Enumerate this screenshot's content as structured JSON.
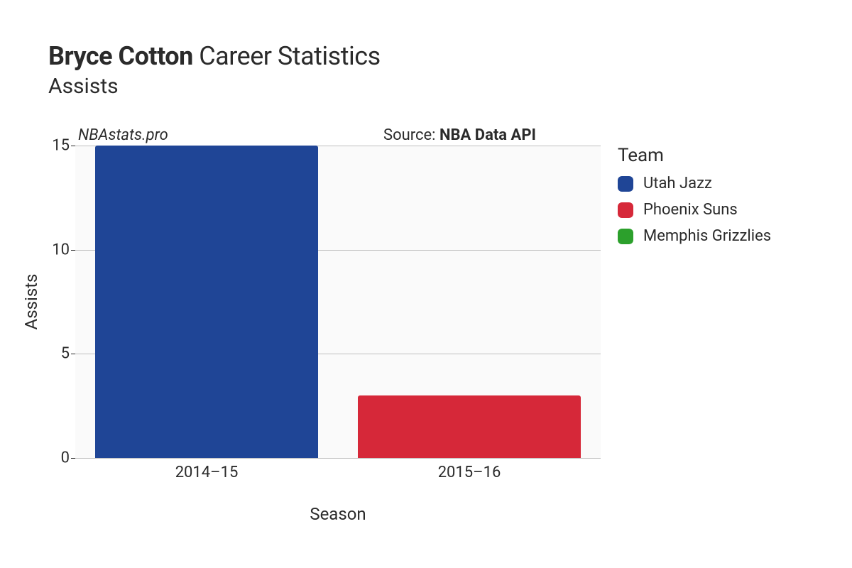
{
  "title": {
    "player_name": "Bryce Cotton",
    "suffix": " Career Statistics",
    "subtitle": "Assists",
    "title_fontsize": 36,
    "subtitle_fontsize": 30,
    "title_color": "#2b2b2b"
  },
  "watermark": "NBAstats.pro",
  "watermark_fontsize": 22,
  "watermark_style": "italic",
  "source": {
    "prefix": "Source: ",
    "name": "NBA Data API",
    "fontsize": 22
  },
  "chart": {
    "type": "bar",
    "background_color": "#fafafa",
    "grid_color": "#bfbfbf",
    "categories": [
      "2014–15",
      "2015–16"
    ],
    "values": [
      15,
      3
    ],
    "bar_colors": [
      "#1f4596",
      "#d62839"
    ],
    "bar_width": 0.85,
    "xlabel": "Season",
    "ylabel": "Assists",
    "axis_label_fontsize": 24,
    "tick_fontsize": 22,
    "ylim": [
      0,
      15
    ],
    "yticks": [
      0,
      5,
      10,
      15
    ]
  },
  "legend": {
    "title": "Team",
    "title_fontsize": 26,
    "item_fontsize": 22,
    "items": [
      {
        "label": "Utah Jazz",
        "color": "#1f4596"
      },
      {
        "label": "Phoenix Suns",
        "color": "#d62839"
      },
      {
        "label": "Memphis Grizzlies",
        "color": "#2ca02c"
      }
    ]
  }
}
